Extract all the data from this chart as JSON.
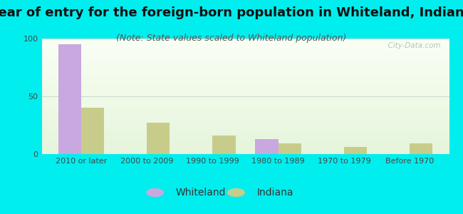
{
  "title": "Year of entry for the foreign-born population in Whiteland, Indiana",
  "subtitle": "(Note: State values scaled to Whiteland population)",
  "categories": [
    "2010 or later",
    "2000 to 2009",
    "1990 to 1999",
    "1980 to 1989",
    "1970 to 1979",
    "Before 1970"
  ],
  "whiteland_values": [
    95,
    0,
    0,
    13,
    0,
    0
  ],
  "indiana_values": [
    40,
    27,
    16,
    9,
    6,
    9
  ],
  "whiteland_color": "#c9a8e0",
  "indiana_color": "#c8cc8a",
  "bar_width": 0.35,
  "ylim": [
    0,
    100
  ],
  "yticks": [
    0,
    50,
    100
  ],
  "background_outer": "#00eeee",
  "title_fontsize": 13,
  "subtitle_fontsize": 9,
  "tick_fontsize": 8,
  "legend_fontsize": 10,
  "watermark_text": "  City-Data.com",
  "grid_color": "#ccddcc"
}
